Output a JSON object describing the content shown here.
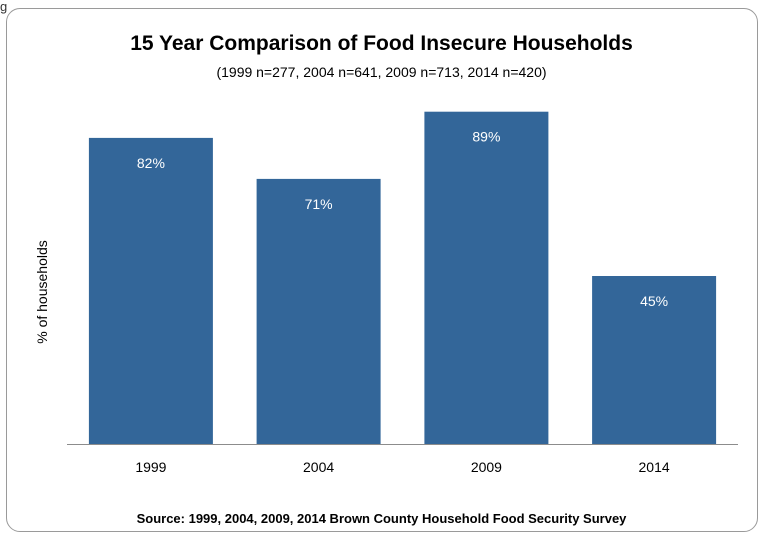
{
  "corner_text": "g",
  "chart_data": {
    "type": "bar",
    "title": "15 Year Comparison of Food Insecure Households",
    "subtitle": "(1999 n=277, 2004 n=641, 2009 n=713, 2014 n=420)",
    "xlabel": "",
    "ylabel": "% of households",
    "categories": [
      "1999",
      "2004",
      "2009",
      "2014"
    ],
    "values": [
      82,
      71,
      89,
      45
    ],
    "value_labels": [
      "82%",
      "71%",
      "89%",
      "45%"
    ],
    "ylim": [
      0,
      90
    ],
    "grid": false,
    "legend": "none",
    "bar_color": "#336699",
    "source": "Source:  1999, 2004, 2009, 2014 Brown County Household  Food Security Survey"
  }
}
